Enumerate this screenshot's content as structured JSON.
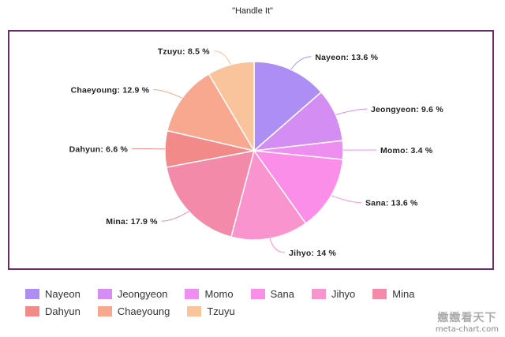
{
  "chart_data": {
    "type": "pie",
    "title": "\"Handle It\"",
    "label_suffix": " %",
    "slices": [
      {
        "name": "Nayeon",
        "value": 13.6,
        "label": "Nayeon: 13.6 %",
        "color": "#ac8ef5"
      },
      {
        "name": "Jeongyeon",
        "value": 9.6,
        "label": "Jeongyeon: 9.6 %",
        "color": "#d48ef3"
      },
      {
        "name": "Momo",
        "value": 3.4,
        "label": "Momo: 3.4 %",
        "color": "#ee8ef0"
      },
      {
        "name": "Sana",
        "value": 13.6,
        "label": "Sana: 13.6 %",
        "color": "#fb8ee8"
      },
      {
        "name": "Jihyo",
        "value": 14,
        "label": "Jihyo: 14 %",
        "color": "#f994cf"
      },
      {
        "name": "Mina",
        "value": 17.9,
        "label": "Mina: 17.9 %",
        "color": "#f38aaa"
      },
      {
        "name": "Dahyun",
        "value": 6.6,
        "label": "Dahyun: 6.6 %",
        "color": "#f28a8a"
      },
      {
        "name": "Chaeyoung",
        "value": 12.9,
        "label": "Chaeyoung: 12.9 %",
        "color": "#f7a88e"
      },
      {
        "name": "Tzuyu",
        "value": 8.5,
        "label": "Tzuyu: 8.5 %",
        "color": "#f9c39c"
      }
    ],
    "legend_position": "bottom"
  },
  "frame_color": "#6b2c6b",
  "watermark": {
    "main": "嫐嫐看天下",
    "sub": "meta-chart.com"
  }
}
